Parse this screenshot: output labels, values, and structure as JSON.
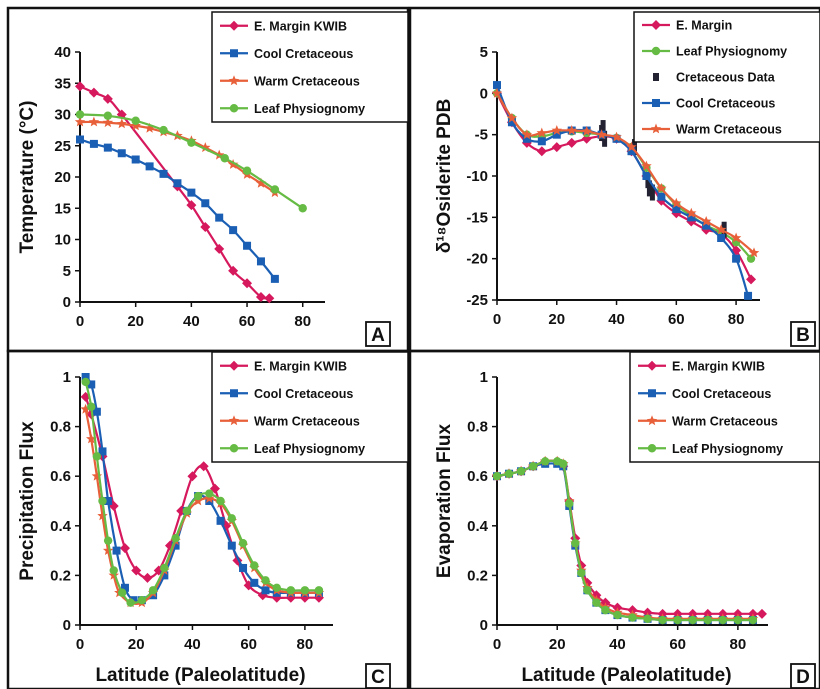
{
  "colors": {
    "e_margin": "#d6185c",
    "cool": "#1a5fb4",
    "warm": "#e8603a",
    "leaf": "#66bb44",
    "data": "#222233",
    "frame": "#111111"
  },
  "xlabel_common": "Latitude (Paleolatitude)",
  "chart_data": [
    {
      "panel": "A",
      "type": "line",
      "ylabel": "Temperature (°C)",
      "xlabel": "",
      "xlim": [
        0,
        88
      ],
      "ylim": [
        0,
        40
      ],
      "xticks": [
        "0",
        "20",
        "40",
        "60",
        "80"
      ],
      "yticks": [
        "0",
        "5",
        "10",
        "15",
        "20",
        "25",
        "30",
        "35",
        "40"
      ],
      "legend_position": "top-right",
      "series": [
        {
          "name": "E. Margin KWIB",
          "marker": "diamond",
          "x": [
            0,
            5,
            10,
            15,
            35,
            40,
            45,
            50,
            55,
            60,
            65,
            68
          ],
          "y": [
            34.5,
            33.5,
            32.5,
            30,
            18.5,
            15.5,
            12,
            8.5,
            5,
            3,
            0.8,
            0.6
          ]
        },
        {
          "name": "Cool Cretaceous",
          "marker": "square",
          "x": [
            0,
            5,
            10,
            15,
            20,
            25,
            30,
            35,
            40,
            45,
            50,
            55,
            60,
            65,
            70
          ],
          "y": [
            26,
            25.3,
            24.7,
            23.8,
            22.8,
            21.7,
            20.5,
            19,
            17.5,
            15.8,
            13.5,
            11.5,
            9,
            6.5,
            3.7
          ]
        },
        {
          "name": "Warm Cretaceous",
          "marker": "star",
          "x": [
            0,
            5,
            10,
            15,
            20,
            25,
            30,
            35,
            40,
            45,
            50,
            55,
            60,
            65,
            70
          ],
          "y": [
            28.8,
            28.8,
            28.7,
            28.5,
            28.2,
            27.8,
            27.2,
            26.6,
            25.8,
            24.7,
            23.5,
            22,
            20.4,
            19,
            17.5
          ]
        },
        {
          "name": "Leaf Physiognomy",
          "marker": "circle",
          "x": [
            0,
            10,
            20,
            30,
            40,
            52,
            60,
            70,
            80
          ],
          "y": [
            30,
            29.8,
            29,
            27.5,
            25.5,
            23,
            21,
            18,
            15
          ]
        }
      ]
    },
    {
      "panel": "B",
      "type": "line",
      "ylabel": "δ¹⁸Osiderite PDB",
      "xlabel": "",
      "xlim": [
        0,
        88
      ],
      "ylim": [
        -25,
        5
      ],
      "xticks": [
        "0",
        "20",
        "40",
        "60",
        "80"
      ],
      "yticks": [
        "5",
        "0",
        "-5",
        "-10",
        "-15",
        "-20",
        "-25"
      ],
      "legend_position": "top-right",
      "series": [
        {
          "name": "E. Margin",
          "marker": "diamond",
          "x": [
            0,
            5,
            10,
            15,
            20,
            25,
            30,
            35,
            40,
            45,
            50,
            55,
            60,
            65,
            70,
            75,
            80,
            85
          ],
          "y": [
            0,
            -3.5,
            -6,
            -7,
            -6.5,
            -6,
            -5.5,
            -5.2,
            -5.5,
            -7,
            -10,
            -13,
            -14.5,
            -15.5,
            -16.5,
            -17,
            -19,
            -22.5
          ]
        },
        {
          "name": "Leaf Physiognomy",
          "marker": "circle",
          "x": [
            0,
            5,
            10,
            15,
            20,
            25,
            30,
            35,
            40,
            45,
            50,
            55,
            60,
            65,
            70,
            75,
            80,
            85
          ],
          "y": [
            0,
            -3,
            -5,
            -5.2,
            -4.8,
            -4.6,
            -4.8,
            -5,
            -5.4,
            -6.5,
            -9,
            -11.5,
            -13.5,
            -14.8,
            -16,
            -16.8,
            -18,
            -20
          ]
        },
        {
          "name": "Cretaceous Data",
          "marker": "bar",
          "x": [
            35,
            35.5,
            36,
            46,
            50.5,
            51,
            52,
            76
          ],
          "y": [
            -4.8,
            -4.2,
            -5.5,
            -6.5,
            -10.5,
            -11.5,
            -12,
            -16.5
          ]
        },
        {
          "name": "Cool Cretaceous",
          "marker": "square",
          "x": [
            0,
            5,
            10,
            15,
            20,
            25,
            30,
            35,
            40,
            45,
            50,
            55,
            60,
            65,
            70,
            75,
            80,
            84
          ],
          "y": [
            1,
            -3.5,
            -5.5,
            -5.8,
            -5,
            -4.5,
            -4.5,
            -5,
            -5.5,
            -7,
            -10,
            -12.5,
            -14,
            -15,
            -16,
            -17.5,
            -20,
            -24.5
          ]
        },
        {
          "name": "Warm Cretaceous",
          "marker": "star",
          "x": [
            0,
            5,
            10,
            15,
            20,
            25,
            30,
            35,
            40,
            45,
            50,
            55,
            60,
            65,
            70,
            75,
            80,
            86
          ],
          "y": [
            0,
            -3,
            -5,
            -4.8,
            -4.5,
            -4.5,
            -4.6,
            -5,
            -5.3,
            -6.5,
            -8.8,
            -11.5,
            -13.3,
            -14.5,
            -15.5,
            -16.5,
            -17.5,
            -19.3
          ]
        }
      ]
    },
    {
      "panel": "C",
      "type": "line",
      "ylabel": "Precipitation Flux",
      "xlabel": "Latitude (Paleolatitude)",
      "xlim": [
        0,
        90
      ],
      "ylim": [
        0,
        1
      ],
      "xticks": [
        "0",
        "20",
        "40",
        "60",
        "80"
      ],
      "yticks": [
        "0",
        "0.2",
        "0.4",
        "0.6",
        "0.8",
        "1"
      ],
      "legend_position": "top-right",
      "series": [
        {
          "name": "E. Margin KWIB",
          "marker": "diamond",
          "x": [
            2,
            4,
            8,
            12,
            16,
            20,
            24,
            28,
            32,
            36,
            40,
            44,
            48,
            52,
            56,
            60,
            65,
            70,
            75,
            80,
            85
          ],
          "y": [
            0.92,
            0.85,
            0.68,
            0.48,
            0.31,
            0.22,
            0.19,
            0.22,
            0.32,
            0.46,
            0.6,
            0.64,
            0.55,
            0.4,
            0.26,
            0.16,
            0.12,
            0.11,
            0.11,
            0.11,
            0.11
          ]
        },
        {
          "name": "Cool Cretaceous",
          "marker": "square",
          "x": [
            2,
            4,
            6,
            8,
            10,
            13,
            16,
            19,
            22,
            26,
            30,
            34,
            38,
            42,
            46,
            50,
            54,
            58,
            62,
            66,
            70,
            75,
            80,
            85
          ],
          "y": [
            1,
            0.97,
            0.86,
            0.7,
            0.5,
            0.3,
            0.15,
            0.1,
            0.1,
            0.12,
            0.2,
            0.32,
            0.46,
            0.52,
            0.5,
            0.42,
            0.32,
            0.23,
            0.17,
            0.14,
            0.13,
            0.13,
            0.13,
            0.13
          ]
        },
        {
          "name": "Warm Cretaceous",
          "marker": "star",
          "x": [
            2,
            4,
            6,
            8,
            10,
            12,
            14,
            18,
            22,
            26,
            30,
            34,
            38,
            42,
            46,
            50,
            54,
            58,
            62,
            66,
            70,
            75,
            80,
            85
          ],
          "y": [
            0.87,
            0.75,
            0.6,
            0.44,
            0.3,
            0.2,
            0.13,
            0.09,
            0.09,
            0.13,
            0.22,
            0.34,
            0.45,
            0.5,
            0.51,
            0.49,
            0.42,
            0.32,
            0.23,
            0.17,
            0.14,
            0.13,
            0.13,
            0.13
          ]
        },
        {
          "name": "Leaf Physiognomy",
          "marker": "circle",
          "x": [
            2,
            4,
            6,
            8,
            10,
            12,
            15,
            18,
            22,
            26,
            30,
            34,
            38,
            42,
            46,
            50,
            54,
            58,
            62,
            66,
            70,
            75,
            80,
            85
          ],
          "y": [
            0.98,
            0.88,
            0.68,
            0.5,
            0.34,
            0.22,
            0.13,
            0.09,
            0.1,
            0.14,
            0.23,
            0.35,
            0.46,
            0.52,
            0.53,
            0.5,
            0.43,
            0.33,
            0.24,
            0.18,
            0.15,
            0.14,
            0.14,
            0.14
          ]
        }
      ]
    },
    {
      "panel": "D",
      "type": "line",
      "ylabel": "Evaporation Flux",
      "xlabel": "Latitude (Paleolatitude)",
      "xlim": [
        0,
        90
      ],
      "ylim": [
        0,
        1
      ],
      "xticks": [
        "0",
        "20",
        "40",
        "60",
        "80"
      ],
      "yticks": [
        "0",
        "0.2",
        "0.4",
        "0.6",
        "0.8",
        "1"
      ],
      "legend_position": "top-right",
      "series": [
        {
          "name": "E. Margin KWIB",
          "marker": "diamond",
          "x": [
            0,
            4,
            8,
            12,
            16,
            20,
            22,
            24,
            26,
            28,
            30,
            33,
            36,
            40,
            45,
            50,
            55,
            60,
            65,
            70,
            75,
            80,
            85,
            88
          ],
          "y": [
            0.6,
            0.61,
            0.62,
            0.64,
            0.66,
            0.66,
            0.64,
            0.5,
            0.35,
            0.24,
            0.17,
            0.12,
            0.09,
            0.07,
            0.06,
            0.05,
            0.045,
            0.045,
            0.045,
            0.045,
            0.045,
            0.045,
            0.045,
            0.045
          ]
        },
        {
          "name": "Cool Cretaceous",
          "marker": "square",
          "x": [
            0,
            4,
            8,
            12,
            16,
            20,
            22,
            24,
            26,
            28,
            30,
            33,
            36,
            40,
            45,
            50,
            55,
            60,
            65,
            70,
            75,
            80,
            85
          ],
          "y": [
            0.6,
            0.61,
            0.62,
            0.64,
            0.65,
            0.65,
            0.64,
            0.48,
            0.32,
            0.21,
            0.14,
            0.09,
            0.06,
            0.04,
            0.03,
            0.025,
            0.02,
            0.02,
            0.02,
            0.02,
            0.02,
            0.02,
            0.02
          ]
        },
        {
          "name": "Warm Cretaceous",
          "marker": "star",
          "x": [
            0,
            4,
            8,
            12,
            16,
            20,
            22,
            24,
            26,
            28,
            30,
            33,
            36,
            40,
            45,
            50,
            55,
            60,
            65,
            70,
            75,
            80,
            85
          ],
          "y": [
            0.6,
            0.61,
            0.62,
            0.64,
            0.66,
            0.66,
            0.65,
            0.5,
            0.33,
            0.22,
            0.15,
            0.1,
            0.07,
            0.05,
            0.04,
            0.03,
            0.025,
            0.025,
            0.025,
            0.025,
            0.025,
            0.025,
            0.025
          ]
        },
        {
          "name": "Leaf Physiognomy",
          "marker": "circle",
          "x": [
            0,
            4,
            8,
            12,
            16,
            20,
            22,
            24,
            26,
            28,
            30,
            33,
            36,
            40,
            45,
            50,
            55,
            60,
            65,
            70,
            75,
            80,
            85
          ],
          "y": [
            0.6,
            0.61,
            0.62,
            0.64,
            0.66,
            0.66,
            0.65,
            0.49,
            0.33,
            0.21,
            0.14,
            0.09,
            0.06,
            0.04,
            0.03,
            0.025,
            0.02,
            0.02,
            0.02,
            0.02,
            0.02,
            0.02,
            0.02
          ]
        }
      ]
    }
  ]
}
